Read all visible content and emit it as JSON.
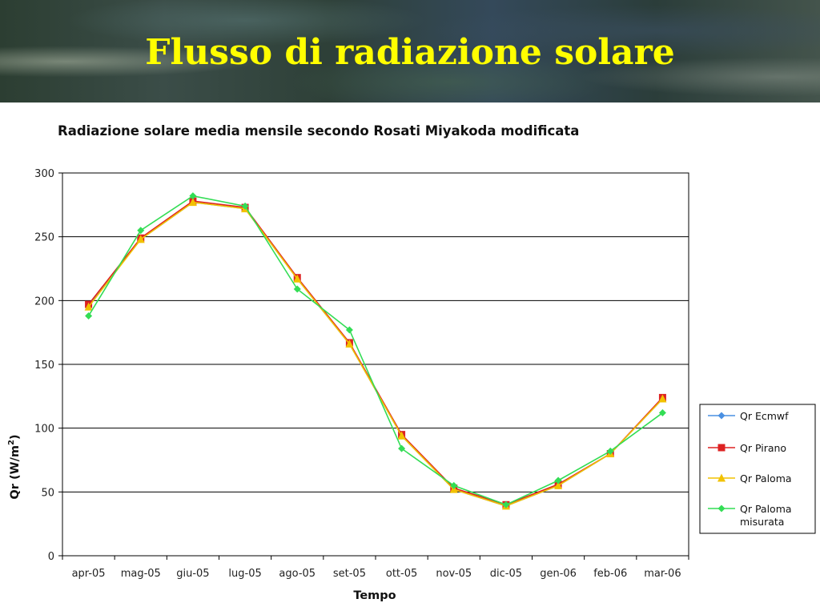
{
  "slide": {
    "title": "Flusso di radiazione solare"
  },
  "chart_data": {
    "type": "line",
    "title": "Radiazione solare media mensile secondo Rosati Miyakoda modificata",
    "xlabel": "Tempo",
    "ylabel": "Qr (W/m",
    "ylabel_sup": "2",
    "ylabel_suffix": ")",
    "ylim": [
      0,
      300
    ],
    "yticks": [
      "0",
      "50",
      "100",
      "150",
      "200",
      "250",
      "300"
    ],
    "grid": true,
    "legend_position": "right",
    "categories": [
      "apr-05",
      "mag-05",
      "giu-05",
      "lug-05",
      "ago-05",
      "set-05",
      "ott-05",
      "nov-05",
      "dic-05",
      "gen-06",
      "feb-06",
      "mar-06"
    ],
    "series": [
      {
        "name": "Qr Ecmwf",
        "color": "#4a90e2",
        "marker": "diamond",
        "values": [
          196,
          248,
          277,
          272,
          217,
          166,
          94,
          52,
          39,
          55,
          80,
          123
        ]
      },
      {
        "name": "Qr Pirano",
        "color": "#dd2222",
        "marker": "square",
        "values": [
          197,
          249,
          278,
          273,
          218,
          167,
          95,
          53,
          40,
          56,
          80,
          124
        ]
      },
      {
        "name": "Qr Paloma",
        "color": "#f2c200",
        "marker": "triangle",
        "values": [
          195,
          248,
          277,
          272,
          217,
          166,
          94,
          52,
          39,
          55,
          80,
          123
        ]
      },
      {
        "name": "Qr Paloma misurata",
        "name_lines": [
          "Qr Paloma",
          "misurata"
        ],
        "color": "#33dd55",
        "marker": "diamond",
        "values": [
          188,
          255,
          282,
          274,
          209,
          177,
          84,
          55,
          40,
          59,
          82,
          112
        ]
      }
    ]
  }
}
